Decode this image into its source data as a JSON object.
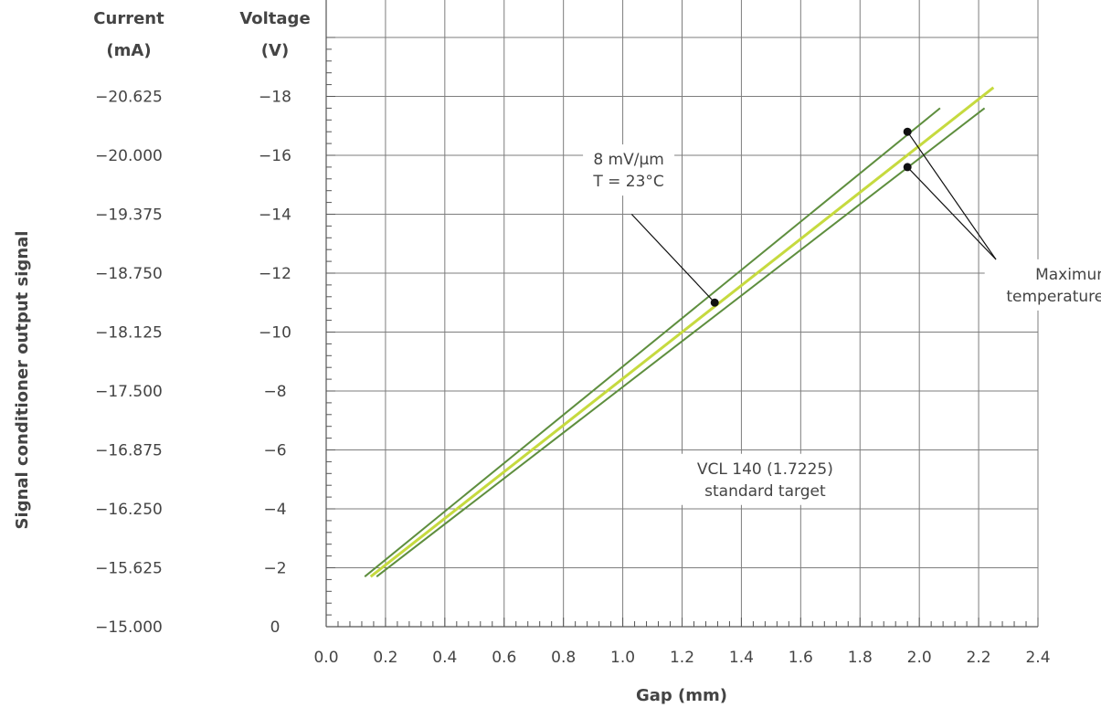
{
  "chart_data": {
    "type": "line",
    "xlabel": "Gap (mm)",
    "ylabel": "Signal conditioner output signal",
    "voltage_axis_title": [
      "Voltage",
      "(V)"
    ],
    "current_axis_title": [
      "Current",
      "(mA)"
    ],
    "x_range": [
      0,
      2.4
    ],
    "y_range": [
      0,
      20
    ],
    "x_ticks": [
      0.0,
      0.2,
      0.4,
      0.6,
      0.8,
      1.0,
      1.2,
      1.4,
      1.6,
      1.8,
      2.0,
      2.2,
      2.4
    ],
    "x_tick_labels": [
      "0.0",
      "0.2",
      "0.4",
      "0.6",
      "0.8",
      "1.0",
      "1.2",
      "1.4",
      "1.6",
      "1.8",
      "2.0",
      "2.2",
      "2.4"
    ],
    "y_ticks": [
      0,
      2,
      4,
      6,
      8,
      10,
      12,
      14,
      16,
      18
    ],
    "voltage_tick_labels": [
      "0",
      "−2",
      "−4",
      "−6",
      "−8",
      "−10",
      "−12",
      "−14",
      "−16",
      "−18"
    ],
    "current_tick_labels": [
      "−15.000",
      "−15.625",
      "−16.250",
      "−16.875",
      "−17.500",
      "−18.125",
      "−18.750",
      "−19.375",
      "−20.000",
      "−20.625"
    ],
    "grid": true,
    "series": [
      {
        "color": "#5e8e3e",
        "x": [
          0.13,
          2.07
        ],
        "y": [
          1.7,
          17.6
        ]
      },
      {
        "color": "#c6da3f",
        "x": [
          0.15,
          2.25
        ],
        "y": [
          1.7,
          18.3
        ]
      },
      {
        "color": "#5e8e3e",
        "x": [
          0.17,
          2.22
        ],
        "y": [
          1.7,
          17.6
        ]
      }
    ],
    "markers": [
      {
        "x": 1.31,
        "y": 11.0
      },
      {
        "x": 1.96,
        "y": 16.8
      },
      {
        "x": 1.96,
        "y": 15.6
      }
    ],
    "annotations": [
      {
        "lines": [
          "8 mV/µm",
          "T = 23°C"
        ],
        "label_x": 1.02,
        "label_y": 15.5,
        "points_to": [
          1.31,
          11.0
        ]
      },
      {
        "lines": [
          "Maximum",
          "temperature drift"
        ],
        "label_x": 2.52,
        "label_y": 11.6,
        "points_to": [
          [
            1.96,
            16.8
          ],
          [
            1.96,
            15.6
          ]
        ]
      },
      {
        "lines": [
          "VCL 140 (1.7225)",
          "standard target"
        ],
        "label_x": 1.48,
        "label_y": 5.0
      }
    ]
  },
  "colors": {
    "grid": "#7d7d7d",
    "axis": "#555555",
    "text": "#444444",
    "marker": "#111111"
  }
}
